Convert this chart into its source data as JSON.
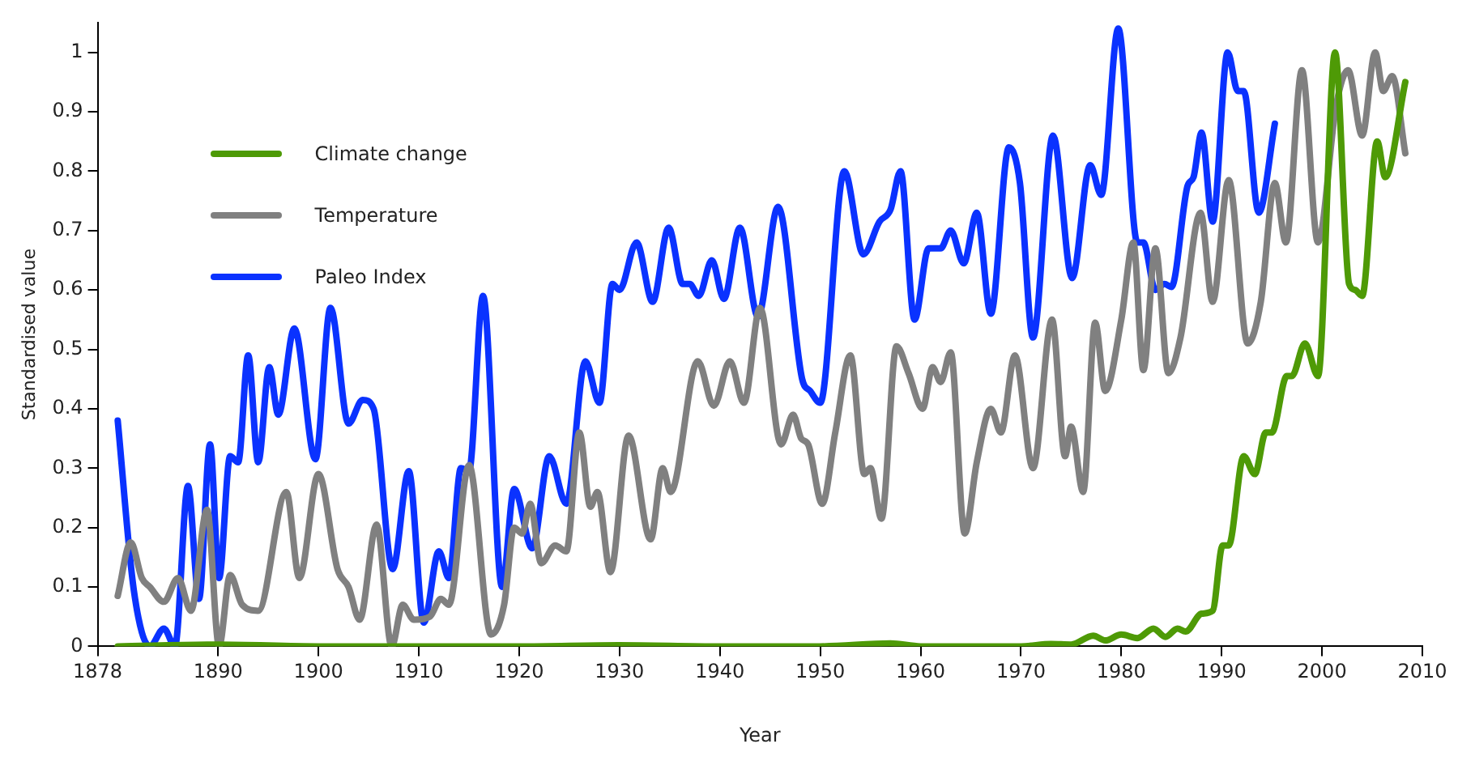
{
  "chart_data": {
    "type": "line",
    "xlabel": "Year",
    "ylabel": "Standardised value",
    "xlim": [
      1878,
      2010
    ],
    "xticks": [
      1878,
      1890,
      1900,
      1910,
      1920,
      1930,
      1940,
      1950,
      1960,
      1970,
      1980,
      1990,
      2000,
      2010
    ],
    "ylim": [
      0,
      1.05
    ],
    "yticks": [
      0,
      0.1,
      0.2,
      0.3,
      0.4,
      0.5,
      0.6,
      0.7,
      0.8,
      0.9,
      1
    ],
    "grid": false,
    "legend": "top left",
    "marker": "none",
    "line_style": "solid",
    "series": [
      {
        "name": "Climate change",
        "color": "#4e9a06",
        "x": [
          1880,
          1890,
          1900,
          1910,
          1920,
          1930,
          1940,
          1950,
          1957,
          1960,
          1970,
          1973,
          1975,
          1977.2,
          1978.4,
          1980,
          1981.6,
          1983.2,
          1984.4,
          1985.6,
          1986.4,
          1988,
          1989.1,
          1990.1,
          1990.7,
          1992.2,
          1993.3,
          1994.4,
          1995,
          1996.5,
          1997,
          1998.3,
          1999.6,
          2001.3,
          2002.7,
          2003.3,
          2004,
          2005.5,
          2006.3,
          2008.3
        ],
        "values": [
          0,
          0.003,
          0,
          0,
          0,
          0.002,
          0,
          0,
          0.005,
          0,
          0,
          0.004,
          0.003,
          0.018,
          0.01,
          0.02,
          0.014,
          0.03,
          0.016,
          0.03,
          0.025,
          0.055,
          0.06,
          0.17,
          0.17,
          0.32,
          0.29,
          0.36,
          0.36,
          0.455,
          0.455,
          0.51,
          0.455,
          1.0,
          0.61,
          0.6,
          0.59,
          0.85,
          0.79,
          0.95
        ]
      },
      {
        "name": "Temperature",
        "color": "#808080",
        "x": [
          1880,
          1881.3,
          1882.4,
          1883.2,
          1884.6,
          1886,
          1887.3,
          1888.9,
          1890.1,
          1891.2,
          1892.4,
          1894,
          1896.8,
          1898.1,
          1900,
          1901.9,
          1903,
          1904.1,
          1905.8,
          1907.3,
          1908.4,
          1909.5,
          1911.1,
          1912.2,
          1913,
          1915,
          1917.2,
          1918.5,
          1919.5,
          1920.3,
          1921.1,
          1922.2,
          1923.6,
          1924.7,
          1926,
          1927.1,
          1927.8,
          1929.1,
          1930.9,
          1933.1,
          1934.3,
          1935.1,
          1937.8,
          1939.4,
          1941,
          1942.4,
          1944,
          1946.1,
          1947.3,
          1948.1,
          1948.8,
          1950.2,
          1951.5,
          1953,
          1954.4,
          1955,
          1956.1,
          1957.6,
          1958.8,
          1960.2,
          1961.2,
          1962,
          1963,
          1964.4,
          1965.6,
          1967,
          1968,
          1969.4,
          1971.2,
          1973.1,
          1974.4,
          1975,
          1976.2,
          1977.4,
          1978.4,
          1980,
          1981.2,
          1982.2,
          1983.4,
          1984.7,
          1985.9,
          1987.9,
          1989.1,
          1990.7,
          1992.6,
          1993.9,
          1995.3,
          1996.4,
          1998,
          1999.6,
          2001.4,
          2002.6,
          2004,
          2005.3,
          2006.1,
          2007,
          2008.3
        ],
        "values": [
          0.085,
          0.175,
          0.115,
          0.1,
          0.075,
          0.115,
          0.06,
          0.23,
          0,
          0.12,
          0.07,
          0.06,
          0.26,
          0.115,
          0.29,
          0.13,
          0.1,
          0.045,
          0.205,
          0,
          0.07,
          0.045,
          0.05,
          0.08,
          0.07,
          0.305,
          0.02,
          0.07,
          0.2,
          0.19,
          0.24,
          0.14,
          0.17,
          0.16,
          0.36,
          0.235,
          0.26,
          0.125,
          0.355,
          0.18,
          0.3,
          0.26,
          0.48,
          0.405,
          0.48,
          0.41,
          0.57,
          0.34,
          0.39,
          0.35,
          0.34,
          0.24,
          0.36,
          0.49,
          0.29,
          0.3,
          0.215,
          0.505,
          0.46,
          0.4,
          0.47,
          0.445,
          0.495,
          0.19,
          0.31,
          0.4,
          0.36,
          0.49,
          0.3,
          0.55,
          0.32,
          0.37,
          0.26,
          0.545,
          0.43,
          0.55,
          0.68,
          0.465,
          0.67,
          0.46,
          0.52,
          0.73,
          0.58,
          0.785,
          0.51,
          0.58,
          0.78,
          0.68,
          0.97,
          0.68,
          0.91,
          0.97,
          0.86,
          1.0,
          0.935,
          0.96,
          0.83
        ]
      },
      {
        "name": "Paleo Index",
        "color": "#0a32ff",
        "x": [
          1880,
          1881.6,
          1883.2,
          1884.6,
          1885.7,
          1887,
          1888.1,
          1889.2,
          1890.1,
          1891.2,
          1892,
          1893,
          1894,
          1895.1,
          1896,
          1897.6,
          1899.7,
          1901.2,
          1903,
          1904.4,
          1905.5,
          1907.4,
          1909,
          1910.5,
          1912,
          1913,
          1914.2,
          1915,
          1916.4,
          1918.3,
          1919.5,
          1921.3,
          1923,
          1924.7,
          1926.6,
          1928,
          1929.3,
          1930,
          1931.7,
          1933.3,
          1934.9,
          1936.3,
          1937,
          1937.9,
          1939.2,
          1940.4,
          1942,
          1943.8,
          1945.8,
          1948.2,
          1949,
          1950,
          1952.4,
          1954.3,
          1955.9,
          1957,
          1958,
          1959.4,
          1960.8,
          1962,
          1963,
          1964.3,
          1965.6,
          1967,
          1968.8,
          1969.9,
          1971.2,
          1973.2,
          1975.1,
          1976.9,
          1978,
          1979.7,
          1981.6,
          1982.2,
          1983.4,
          1984.3,
          1985,
          1986.6,
          1987.2,
          1988,
          1989.1,
          1990.6,
          1991.6,
          1992.2,
          1993.7,
          1995.3
        ],
        "values": [
          0.38,
          0.095,
          0,
          0.03,
          0,
          0.27,
          0.08,
          0.34,
          0.115,
          0.32,
          0.31,
          0.49,
          0.31,
          0.47,
          0.39,
          0.535,
          0.315,
          0.57,
          0.375,
          0.415,
          0.4,
          0.13,
          0.295,
          0.04,
          0.16,
          0.115,
          0.3,
          0.295,
          0.59,
          0.1,
          0.265,
          0.165,
          0.32,
          0.24,
          0.48,
          0.41,
          0.61,
          0.6,
          0.68,
          0.58,
          0.705,
          0.61,
          0.61,
          0.59,
          0.65,
          0.585,
          0.705,
          0.555,
          0.74,
          0.45,
          0.43,
          0.41,
          0.8,
          0.66,
          0.715,
          0.735,
          0.8,
          0.55,
          0.67,
          0.67,
          0.7,
          0.645,
          0.73,
          0.56,
          0.84,
          0.78,
          0.52,
          0.86,
          0.62,
          0.81,
          0.76,
          1.04,
          0.68,
          0.68,
          0.6,
          0.61,
          0.605,
          0.775,
          0.79,
          0.865,
          0.715,
          1.0,
          0.935,
          0.935,
          0.73,
          0.88
        ]
      }
    ]
  }
}
